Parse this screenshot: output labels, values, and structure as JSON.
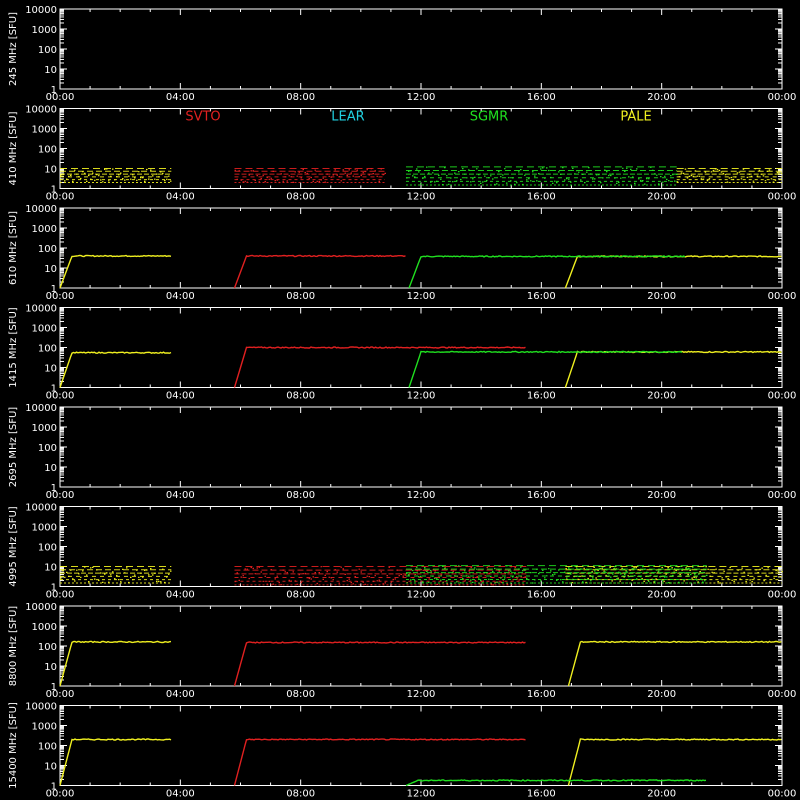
{
  "chart_data": {
    "type": "line",
    "xlim_hours": [
      0,
      24
    ],
    "ylim": [
      1,
      10000
    ],
    "log_y": true,
    "grid": false,
    "legend_placement": "top of second panel",
    "x_tick_labels": [
      "00:00",
      "04:00",
      "08:00",
      "12:00",
      "16:00",
      "20:00",
      "00:00"
    ],
    "y_tick_labels": [
      "1",
      "10",
      "100",
      "1000",
      "10000"
    ],
    "stations": [
      {
        "name": "SVTO",
        "color": "#e02020"
      },
      {
        "name": "LEAR",
        "color": "#20d0e0"
      },
      {
        "name": "SGMR",
        "color": "#20e020"
      },
      {
        "name": "PALE",
        "color": "#f0f020"
      }
    ],
    "panels": [
      {
        "ylabel": "245 MHz [SFU]",
        "series": []
      },
      {
        "ylabel": "410 MHz [SFU]",
        "series": [
          {
            "station": "PALE",
            "segments": [
              [
                0,
                3.7,
                9
              ],
              [
                20.5,
                24,
                8
              ]
            ],
            "band": [
              2,
              10
            ]
          },
          {
            "station": "SVTO",
            "segments": [
              [
                5.8,
                10.8,
                4
              ]
            ],
            "band": [
              2,
              10
            ]
          },
          {
            "station": "SGMR",
            "segments": [
              [
                11.5,
                20.5,
                5
              ]
            ],
            "band": [
              1.5,
              12
            ]
          }
        ]
      },
      {
        "ylabel": "610 MHz [SFU]",
        "series": [
          {
            "station": "PALE",
            "segments": [
              [
                0,
                3.7,
                40
              ],
              [
                16.8,
                24,
                38
              ]
            ]
          },
          {
            "station": "SVTO",
            "segments": [
              [
                5.8,
                11.5,
                40
              ]
            ]
          },
          {
            "station": "SGMR",
            "segments": [
              [
                11.6,
                20.8,
                38
              ]
            ]
          }
        ]
      },
      {
        "ylabel": "1415 MHz [SFU]",
        "series": [
          {
            "station": "PALE",
            "segments": [
              [
                0,
                3.7,
                55
              ],
              [
                16.8,
                24,
                60
              ]
            ]
          },
          {
            "station": "SVTO",
            "segments": [
              [
                5.8,
                15.5,
                100
              ]
            ]
          },
          {
            "station": "SGMR",
            "segments": [
              [
                11.6,
                20.7,
                60
              ]
            ]
          }
        ]
      },
      {
        "ylabel": "2695 MHz [SFU]",
        "series": []
      },
      {
        "ylabel": "4995 MHz [SFU]",
        "series": [
          {
            "station": "PALE",
            "segments": [
              [
                0,
                3.7,
                5
              ],
              [
                16.8,
                24,
                5
              ]
            ],
            "band": [
              1.5,
              10
            ]
          },
          {
            "station": "SVTO",
            "segments": [
              [
                5.8,
                15.5,
                4
              ]
            ],
            "band": [
              1.2,
              10
            ]
          },
          {
            "station": "SGMR",
            "segments": [
              [
                11.5,
                21.5,
                5
              ]
            ],
            "band": [
              1.5,
              11
            ]
          }
        ]
      },
      {
        "ylabel": "8800 MHz [SFU]",
        "series": [
          {
            "station": "PALE",
            "segments": [
              [
                0,
                3.7,
                160
              ],
              [
                16.9,
                24,
                160
              ]
            ]
          },
          {
            "station": "SVTO",
            "segments": [
              [
                5.8,
                15.5,
                150
              ]
            ]
          }
        ]
      },
      {
        "ylabel": "15400 MHz [SFU]",
        "series": [
          {
            "station": "PALE",
            "segments": [
              [
                0,
                3.7,
                200
              ],
              [
                16.9,
                24,
                200
              ]
            ]
          },
          {
            "station": "SVTO",
            "segments": [
              [
                5.8,
                15.5,
                200
              ]
            ]
          },
          {
            "station": "SGMR",
            "segments": [
              [
                11.5,
                21.5,
                1.8
              ]
            ]
          }
        ]
      }
    ]
  }
}
